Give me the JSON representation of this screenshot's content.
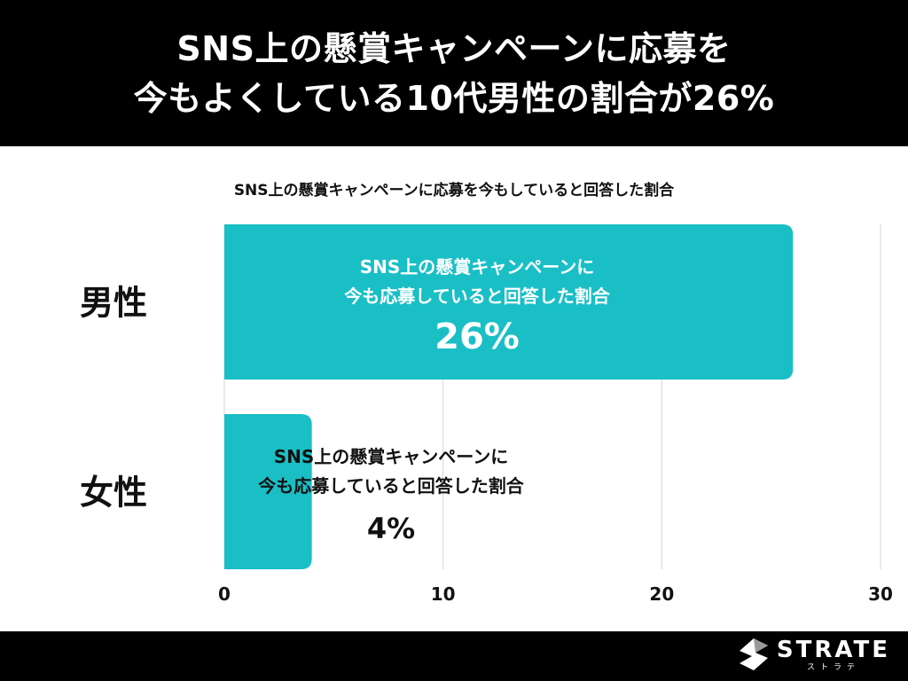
{
  "header": {
    "title_line1": "SNS上の懸賞キャンペーンに応募を",
    "title_line2": "今もよくしている10代男性の割合が26%"
  },
  "chart_data": {
    "type": "bar",
    "orientation": "horizontal",
    "title": "SNS上の懸賞キャンペーンに応募を今もしていると回答した割合",
    "categories": [
      "男性",
      "女性"
    ],
    "values": [
      26,
      4
    ],
    "unit": "%",
    "bar_labels": [
      [
        "SNS上の懸賞キャンペーンに",
        "今も応募していると回答した割合",
        "26%"
      ],
      [
        "SNS上の懸賞キャンペーンに",
        "今も応募していると回答した割合",
        "4%"
      ]
    ],
    "xlim": [
      0,
      30
    ],
    "xticks": [
      0,
      10,
      20,
      30
    ],
    "grid": true,
    "legend": "none",
    "bar_color": "#1ABFC6"
  },
  "footer": {
    "logo_text": "STRATE",
    "logo_subtext": "ストラテ"
  }
}
